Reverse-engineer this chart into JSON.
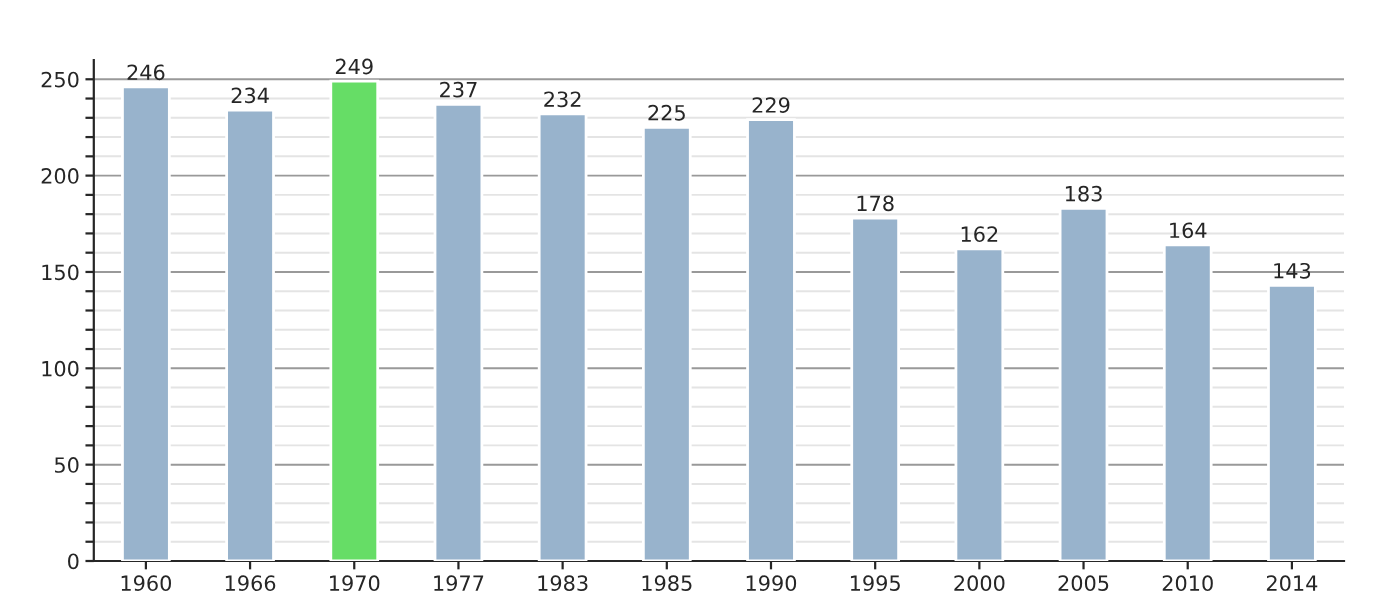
{
  "chart_data": {
    "type": "bar",
    "categories": [
      "1960",
      "1966",
      "1970",
      "1977",
      "1983",
      "1985",
      "1990",
      "1995",
      "2000",
      "2005",
      "2010",
      "2014"
    ],
    "values": [
      246,
      234,
      249,
      237,
      232,
      225,
      229,
      178,
      162,
      183,
      164,
      143
    ],
    "colors": [
      "#98b3cc",
      "#98b3cc",
      "#66dd66",
      "#98b3cc",
      "#98b3cc",
      "#98b3cc",
      "#98b3cc",
      "#98b3cc",
      "#98b3cc",
      "#98b3cc",
      "#98b3cc",
      "#98b3cc"
    ],
    "data_labels": true,
    "ylim": [
      0,
      260
    ],
    "yticks": [
      0,
      {
        "value": 10,
        "label": null
      },
      {
        "value": 20,
        "label": null
      },
      {
        "value": 30,
        "label": null
      },
      {
        "value": 40,
        "label": null
      },
      50,
      {
        "value": 60,
        "label": null
      },
      {
        "value": 70,
        "label": null
      },
      {
        "value": 80,
        "label": null
      },
      {
        "value": 90,
        "label": null
      },
      100,
      {
        "value": 110,
        "label": null
      },
      {
        "value": 120,
        "label": null
      },
      {
        "value": 130,
        "label": null
      },
      {
        "value": 140,
        "label": null
      },
      150,
      {
        "value": 160,
        "label": null
      },
      {
        "value": 170,
        "label": null
      },
      {
        "value": 180,
        "label": null
      },
      {
        "value": 190,
        "label": null
      },
      200,
      {
        "value": 210,
        "label": null
      },
      {
        "value": 220,
        "label": null
      },
      {
        "value": 230,
        "label": null
      },
      {
        "value": 240,
        "label": null
      },
      250
    ],
    "grid": "y"
  }
}
